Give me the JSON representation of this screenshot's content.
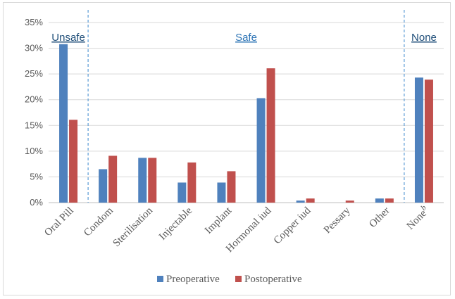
{
  "chart_data": {
    "type": "bar",
    "categories": [
      "Oral Pill",
      "Condom",
      "Sterilisation",
      "Injectable",
      "Implant",
      "Hormonal iud",
      "Copper iud",
      "Pessary",
      "Other",
      "None"
    ],
    "category_superscripts": {
      "None": "b"
    },
    "series": [
      {
        "name": "Preoperative",
        "color": "#4f81bd",
        "values": [
          30.8,
          6.5,
          8.7,
          3.9,
          3.9,
          20.3,
          0.4,
          0.0,
          0.8,
          24.3
        ]
      },
      {
        "name": "Postoperative",
        "color": "#c0504d",
        "values": [
          16.1,
          9.1,
          8.7,
          7.8,
          6.1,
          26.1,
          0.8,
          0.4,
          0.8,
          23.9
        ]
      }
    ],
    "ylim": [
      0,
      35
    ],
    "yticks": [
      "0%",
      "5%",
      "10%",
      "15%",
      "20%",
      "25%",
      "30%",
      "35%"
    ],
    "ytick_values": [
      0,
      5,
      10,
      15,
      20,
      25,
      30,
      35
    ],
    "grid": true,
    "legend_position": "bottom",
    "groups": [
      {
        "label": "Unsafe",
        "color": "#1f4e79",
        "categories": [
          "Oral Pill"
        ]
      },
      {
        "label": "Safe",
        "color": "#2e75b6",
        "categories": [
          "Condom",
          "Sterilisation",
          "Injectable",
          "Implant",
          "Hormonal iud",
          "Copper iud",
          "Pessary",
          "Other"
        ]
      },
      {
        "label": "None",
        "color": "#1f4e79",
        "categories": [
          "None"
        ]
      }
    ],
    "separator_color": "#5b9bd5"
  }
}
